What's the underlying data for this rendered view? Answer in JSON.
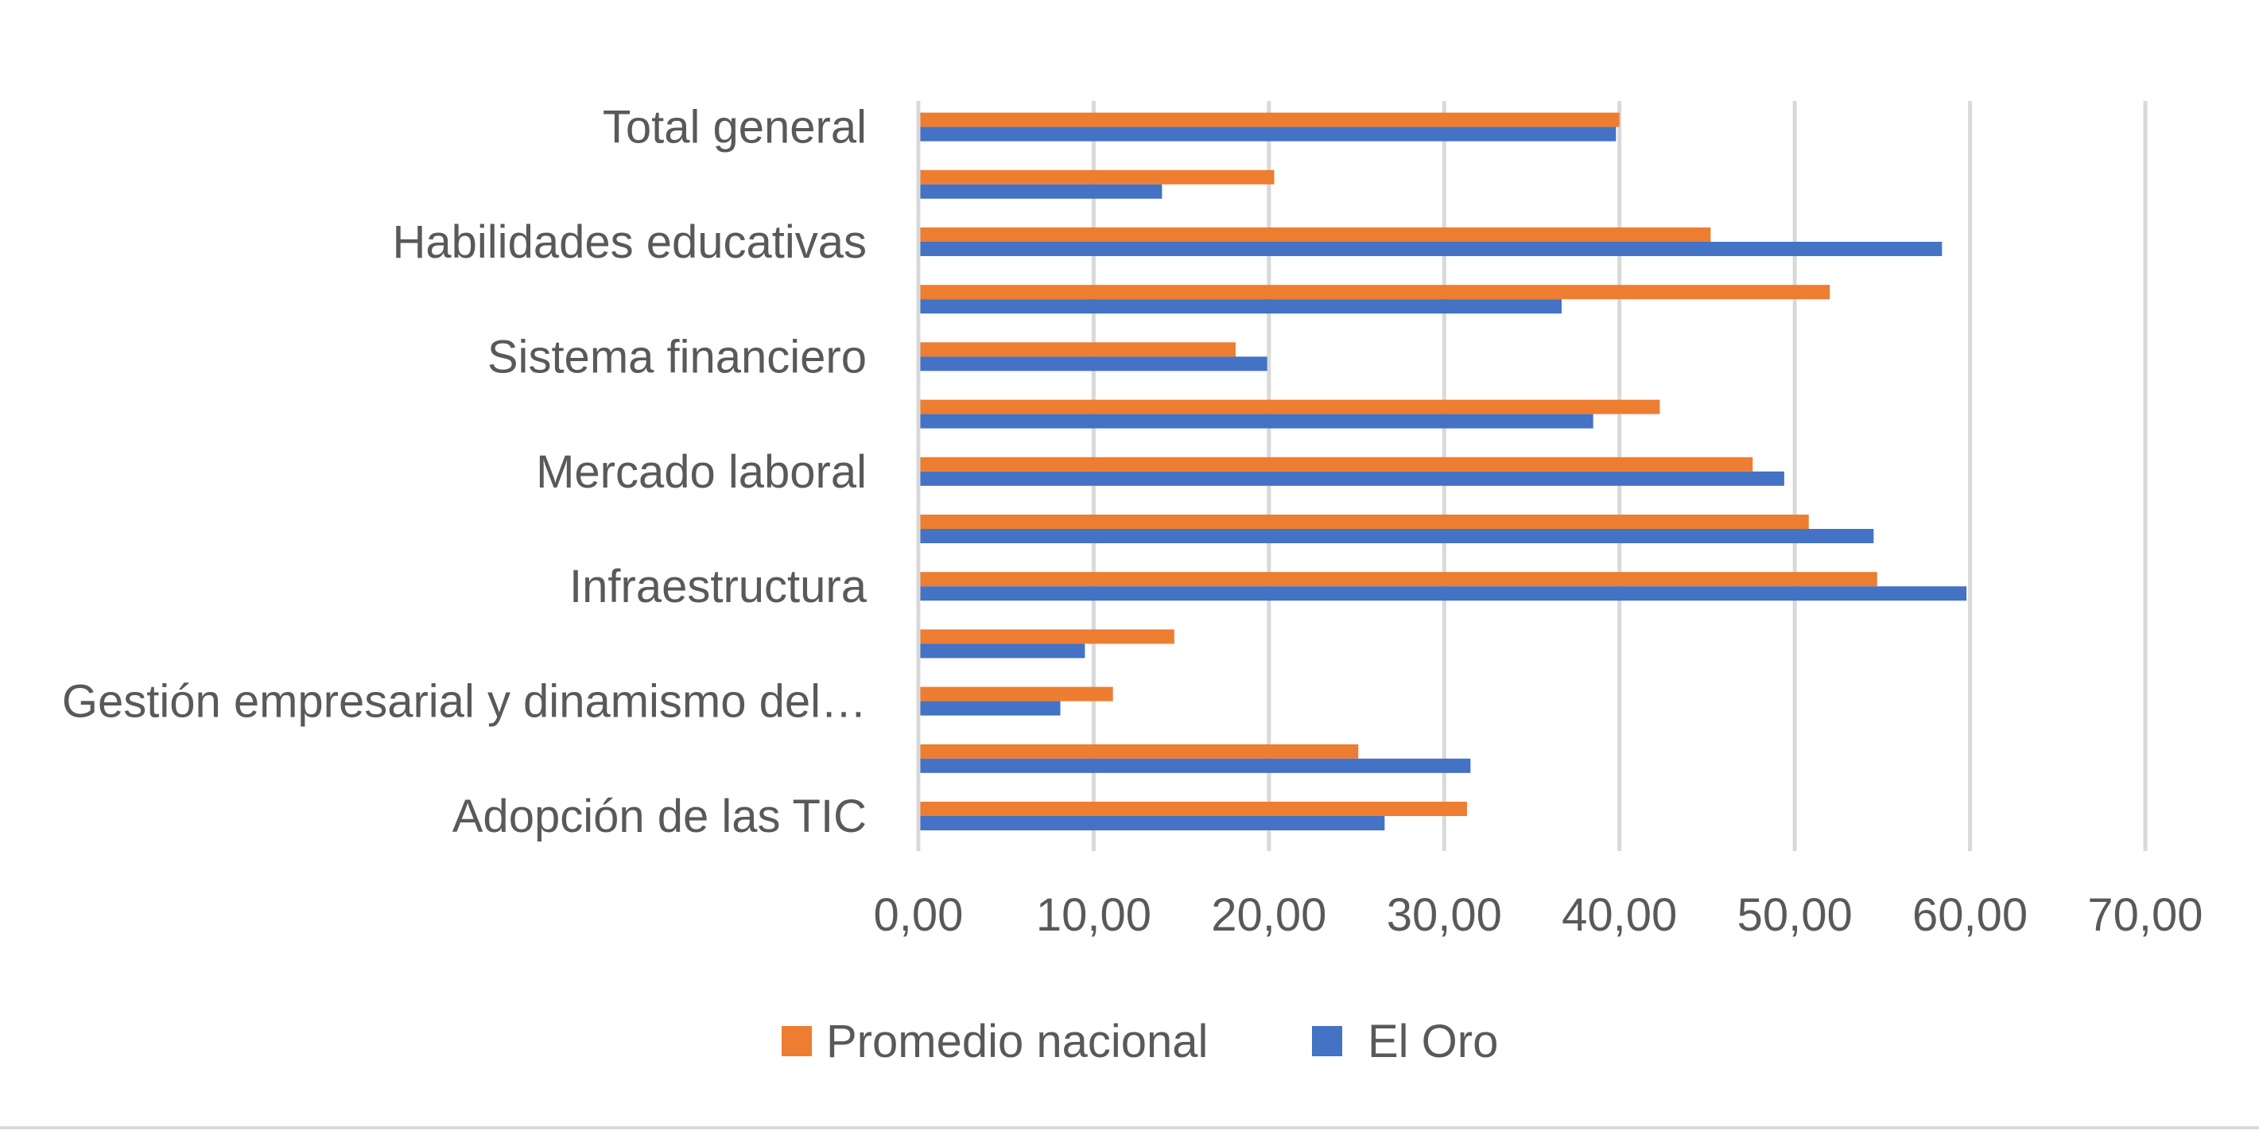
{
  "chart_data": {
    "type": "bar",
    "orientation": "horizontal",
    "categories": [
      "Adopción de las TIC",
      "",
      "Gestión empresarial y dinamismo del…",
      "",
      "Infraestructura",
      "",
      "Mercado laboral",
      "",
      "Sistema financiero",
      "",
      "Habilidades educativas",
      "",
      "Total general"
    ],
    "series": [
      {
        "name": "Promedio nacional",
        "color": "#ED7D31",
        "values": [
          31.3,
          25.1,
          11.1,
          14.6,
          54.7,
          50.8,
          47.6,
          42.3,
          18.1,
          52.0,
          45.2,
          20.3,
          40.0
        ]
      },
      {
        "name": "El Oro",
        "color": "#4472C4",
        "values": [
          26.6,
          31.5,
          8.1,
          9.5,
          59.8,
          54.5,
          49.4,
          38.5,
          19.9,
          36.7,
          58.4,
          13.9,
          39.8
        ]
      }
    ],
    "xlim": [
      0,
      70
    ],
    "x_ticks": [
      "0,00",
      "10,00",
      "20,00",
      "30,00",
      "40,00",
      "50,00",
      "60,00",
      "70,00"
    ],
    "tick_values": [
      0,
      10,
      20,
      30,
      40,
      50,
      60,
      70
    ],
    "title": "",
    "xlabel": "",
    "ylabel": "",
    "grid": true,
    "legend_position": "bottom"
  }
}
